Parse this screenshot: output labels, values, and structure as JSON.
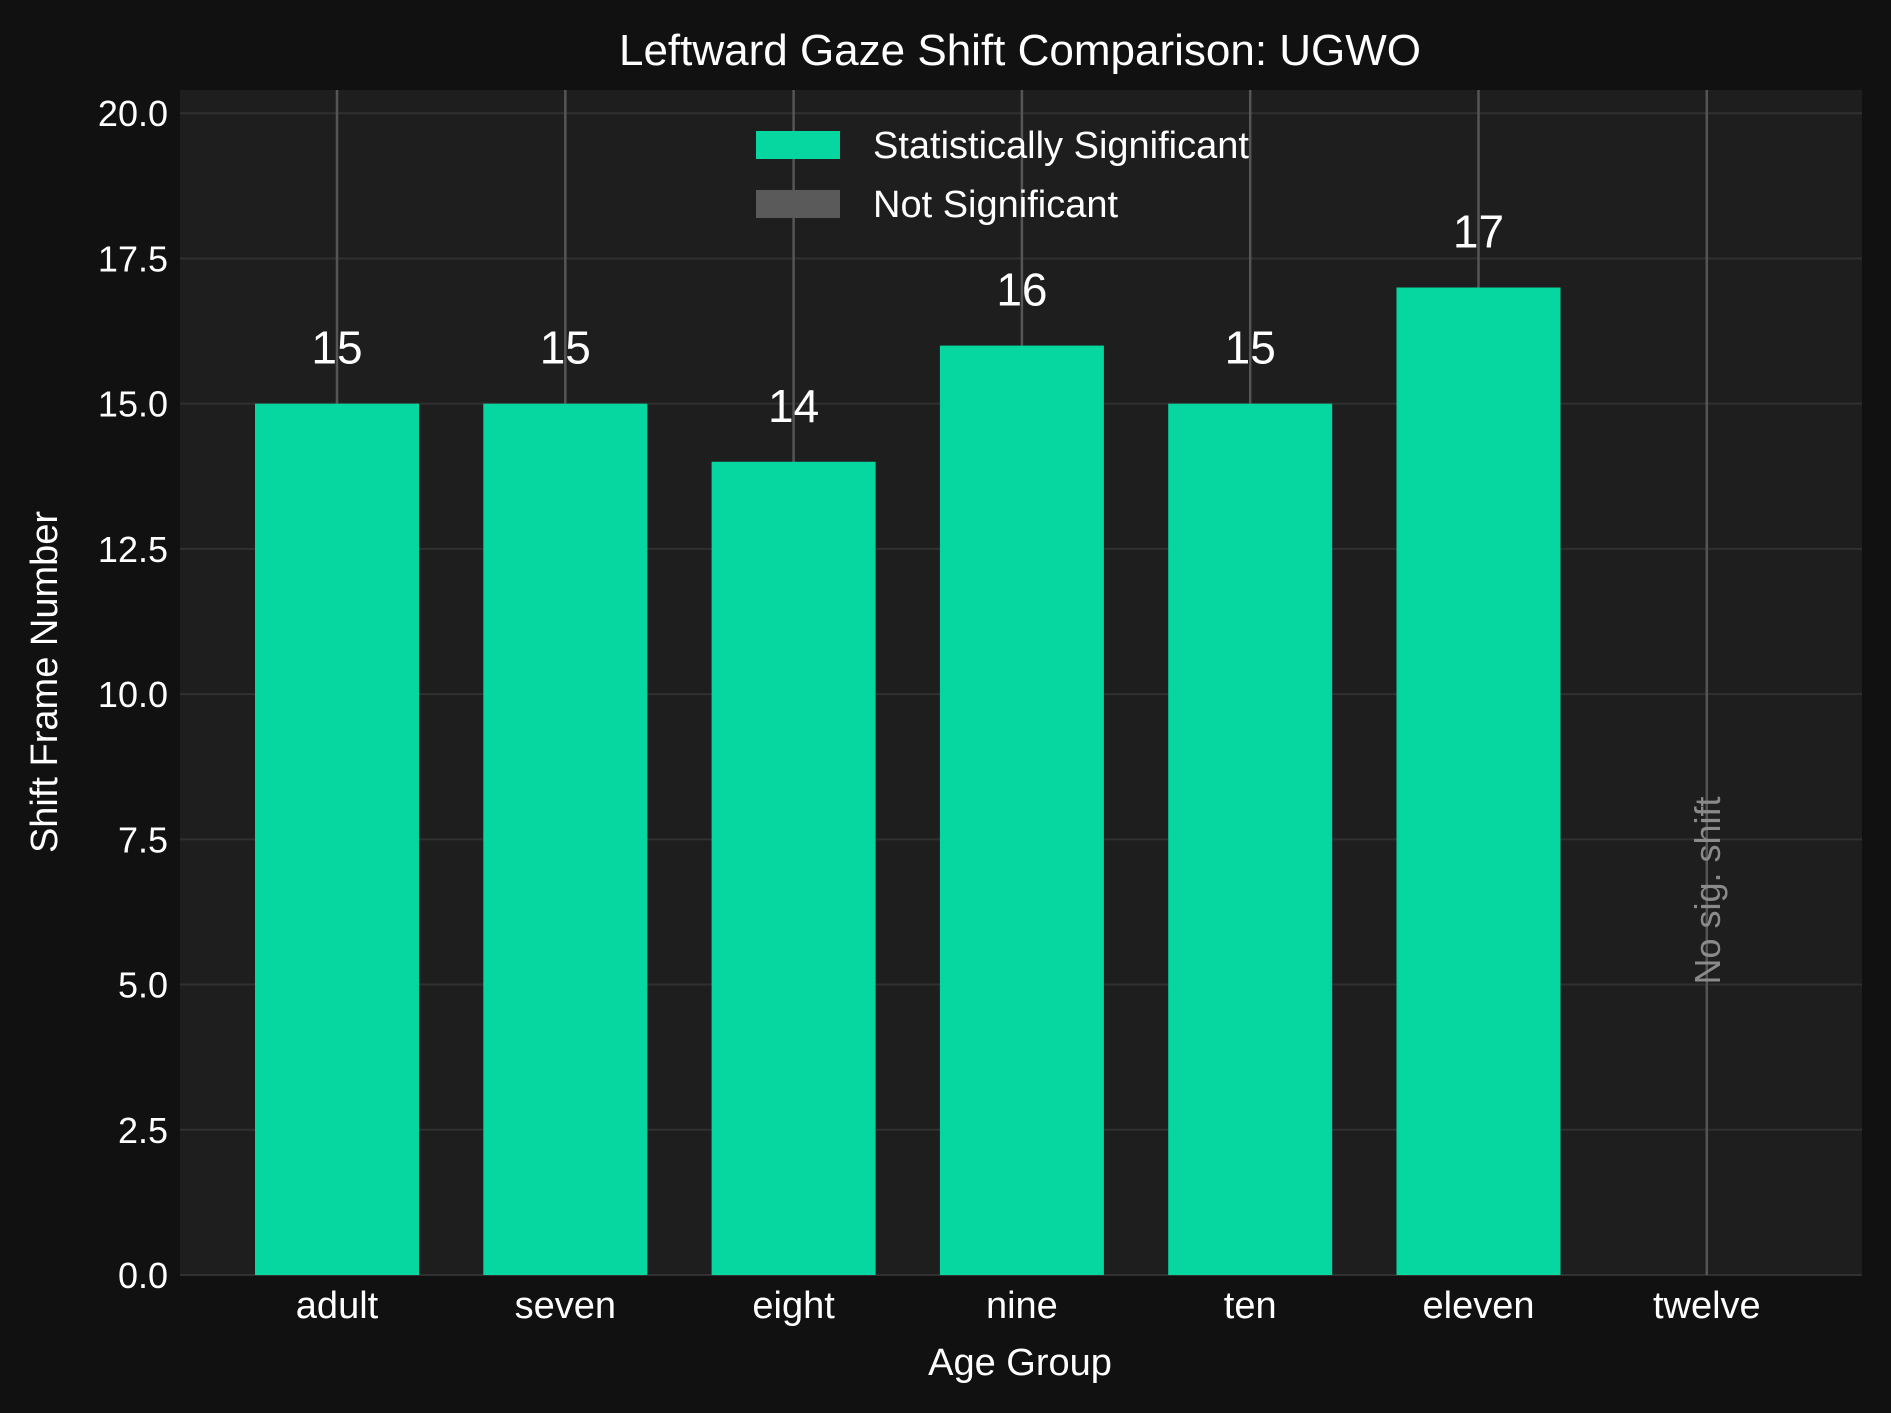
{
  "chart_data": {
    "type": "bar",
    "title": "Leftward Gaze Shift Comparison: UGWO",
    "xlabel": "Age Group",
    "ylabel": "Shift Frame Number",
    "categories": [
      "adult",
      "seven",
      "eight",
      "nine",
      "ten",
      "eleven",
      "twelve"
    ],
    "values": [
      15,
      15,
      14,
      16,
      15,
      17,
      null
    ],
    "significant": [
      true,
      true,
      true,
      true,
      true,
      true,
      false
    ],
    "value_labels": [
      "15",
      "15",
      "14",
      "16",
      "15",
      "17",
      ""
    ],
    "annotation": "No sig. shift",
    "ylim": [
      0,
      20.4
    ],
    "yticks": [
      "0.0",
      "2.5",
      "5.0",
      "7.5",
      "10.0",
      "12.5",
      "15.0",
      "17.5",
      "20.0"
    ],
    "grid": true,
    "legend_placement": "top-center",
    "legend": [
      {
        "label": "Statistically Significant",
        "color": "#06d6a0"
      },
      {
        "label": "Not Significant",
        "color": "#5a5a5a"
      }
    ],
    "colors": {
      "significant": "#06d6a0",
      "not_significant": "#5a5a5a",
      "background": "#111111",
      "plot_background": "#1e1e1e"
    }
  }
}
